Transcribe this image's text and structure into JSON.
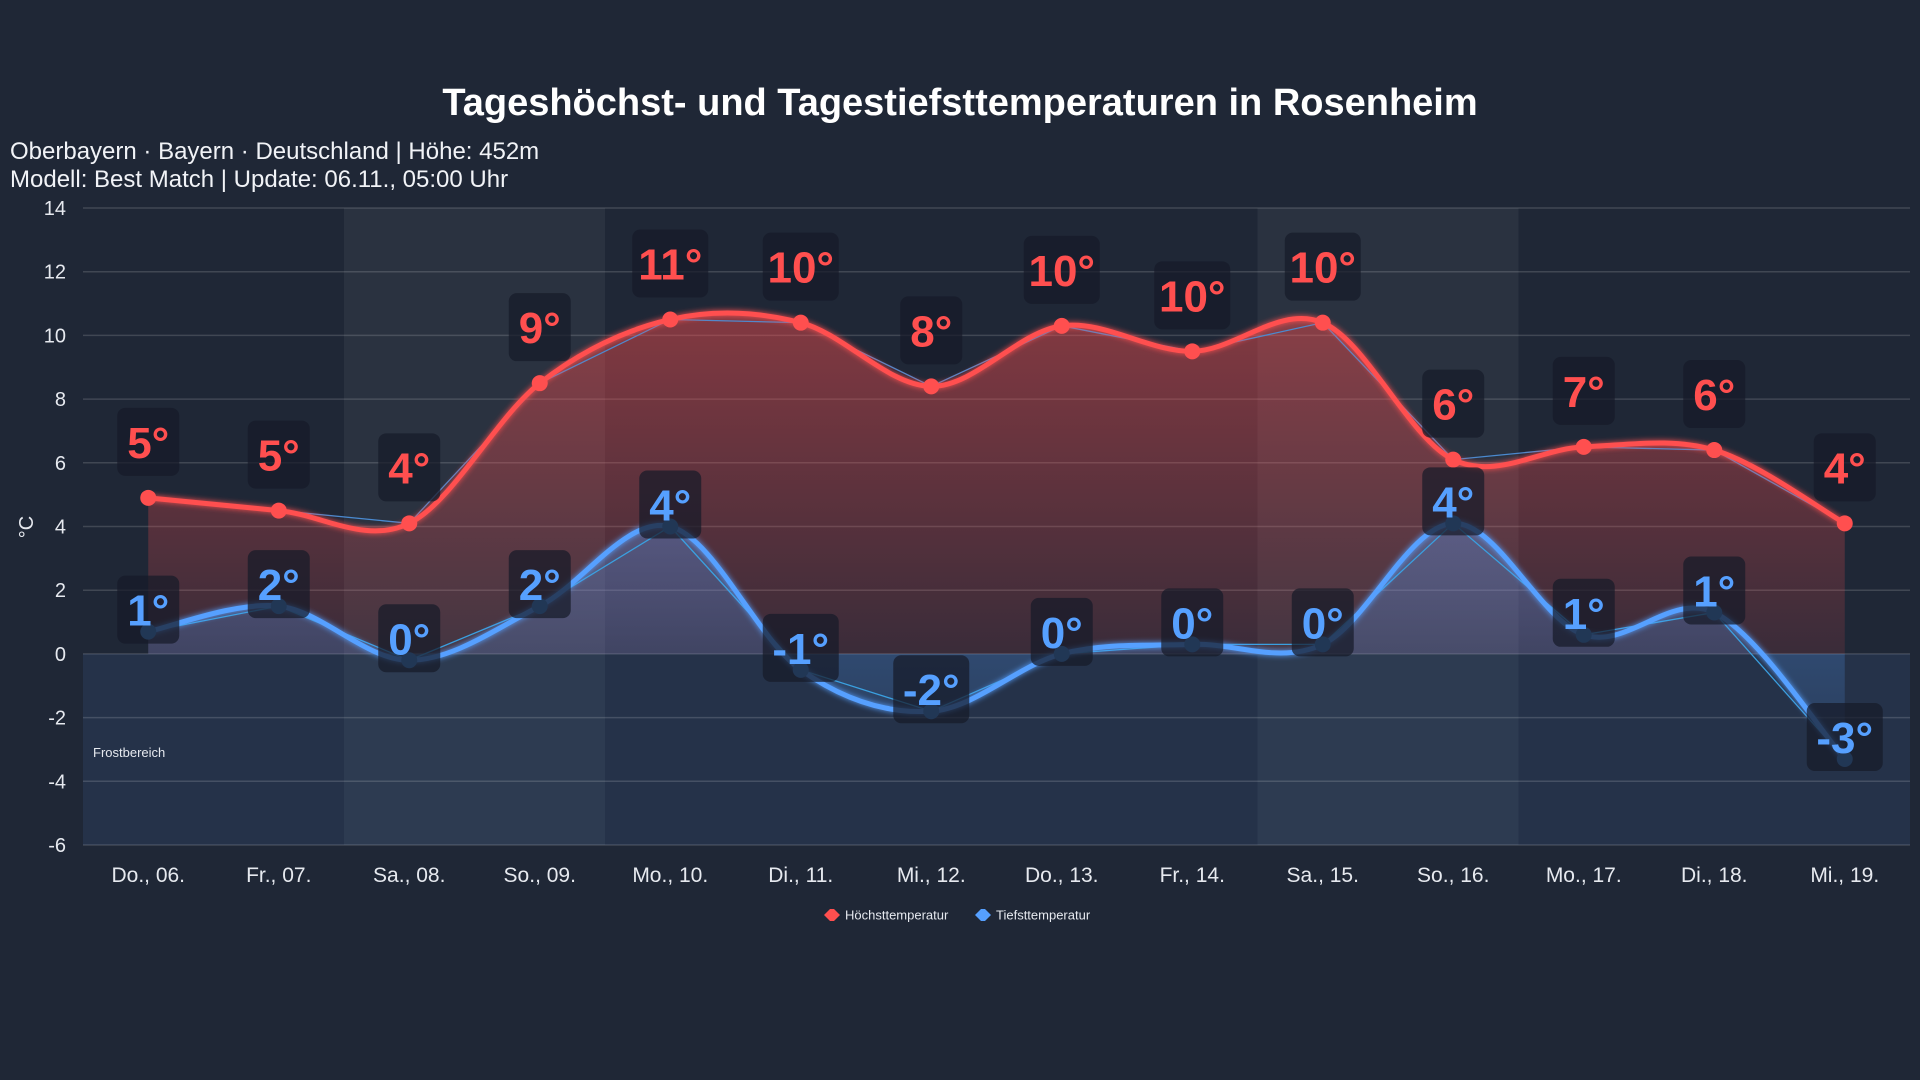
{
  "chart_data": {
    "type": "line",
    "title": "Tageshöchst- und Tagestiefsttemperaturen in Rosenheim",
    "subtitle": [
      "Oberbayern · Bayern · Deutschland | Höhe: 452m",
      "Modell: Best Match | Update: 06.11., 05:00 Uhr"
    ],
    "ylabel": "°C",
    "ylim": [
      -6,
      14
    ],
    "yticks": [
      14,
      12,
      10,
      8,
      6,
      4,
      2,
      0,
      -2,
      -4,
      -6
    ],
    "categories": [
      "Do., 06.",
      "Fr., 07.",
      "Sa., 08.",
      "So., 09.",
      "Mo., 10.",
      "Di., 11.",
      "Mi., 12.",
      "Do., 13.",
      "Fr., 14.",
      "Sa., 15.",
      "So., 16.",
      "Mo., 17.",
      "Di., 18.",
      "Mi., 19."
    ],
    "weekend": [
      "Sa., 08.",
      "So., 09.",
      "Sa., 15.",
      "So., 16."
    ],
    "series": [
      {
        "name": "Höchsttemperatur",
        "color": "#ff4f4f",
        "values": [
          4.9,
          4.5,
          4.1,
          8.5,
          10.5,
          10.4,
          8.4,
          10.3,
          9.5,
          10.4,
          6.1,
          6.5,
          6.4,
          4.1
        ],
        "labels": [
          "5°",
          "5°",
          "4°",
          "9°",
          "11°",
          "10°",
          "8°",
          "10°",
          "10°",
          "10°",
          "6°",
          "7°",
          "6°",
          "4°"
        ]
      },
      {
        "name": "Tiefsttemperatur",
        "color": "#56a0ff",
        "values": [
          0.7,
          1.5,
          -0.2,
          1.5,
          4.0,
          -0.5,
          -1.8,
          0.0,
          0.3,
          0.3,
          4.1,
          0.6,
          1.3,
          -3.3
        ],
        "labels": [
          "1°",
          "2°",
          "0°",
          "2°",
          "4°",
          "-1°",
          "-2°",
          "0°",
          "0°",
          "0°",
          "4°",
          "1°",
          "1°",
          "-3°"
        ]
      }
    ],
    "annotation": "Frostbereich",
    "grid": true,
    "legend": "bottom-center"
  }
}
